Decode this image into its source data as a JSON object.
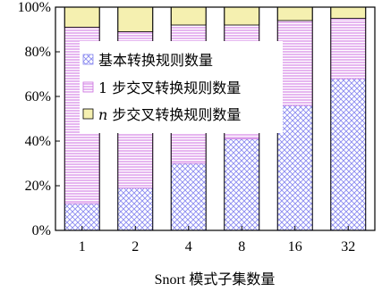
{
  "chart_data": {
    "type": "bar",
    "stacked": true,
    "normalized_percent": true,
    "title": "",
    "xlabel": "Snort 模式子集数量",
    "ylabel": "",
    "categories": [
      "1",
      "2",
      "4",
      "8",
      "16",
      "32"
    ],
    "yticks": [
      "0%",
      "20%",
      "40%",
      "60%",
      "80%",
      "100%"
    ],
    "ylim": [
      0,
      100
    ],
    "grid": false,
    "legend_position": "upper-left-inside",
    "series": [
      {
        "name": "基本转换规则数量",
        "values": [
          12,
          19,
          30,
          41,
          56,
          68
        ],
        "color": "#8a8af0",
        "pattern": "crosshatch"
      },
      {
        "name": "1 步交叉转换规则数量",
        "values": [
          79,
          70,
          62,
          51,
          38,
          27
        ],
        "color": "#d88ae0",
        "pattern": "horizontal-lines"
      },
      {
        "name_prefix": "n",
        "name": " 步交叉转换规则数量",
        "values": [
          9,
          11,
          8,
          8,
          6,
          5
        ],
        "color": "#f5f0b0",
        "pattern": "solid"
      }
    ]
  }
}
